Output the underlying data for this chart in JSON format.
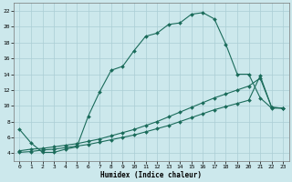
{
  "xlabel": "Humidex (Indice chaleur)",
  "bg_color": "#cce8ec",
  "line_color": "#1a6b5a",
  "grid_color": "#aacdd4",
  "xlim": [
    -0.5,
    23.5
  ],
  "ylim": [
    3.0,
    23.0
  ],
  "xticks": [
    0,
    1,
    2,
    3,
    4,
    5,
    6,
    7,
    8,
    9,
    10,
    11,
    12,
    13,
    14,
    15,
    16,
    17,
    18,
    19,
    20,
    21,
    22,
    23
  ],
  "yticks": [
    4,
    6,
    8,
    10,
    12,
    14,
    16,
    18,
    20,
    22
  ],
  "curve1_x": [
    0,
    1,
    2,
    3,
    4,
    5,
    6,
    7,
    8,
    9,
    10,
    11,
    12,
    13,
    14,
    15,
    16,
    17,
    18,
    19,
    20,
    21,
    22,
    23
  ],
  "curve1_y": [
    7.0,
    5.3,
    4.1,
    4.1,
    4.5,
    4.8,
    8.7,
    11.8,
    14.5,
    15.0,
    17.0,
    18.8,
    19.2,
    20.3,
    20.5,
    21.6,
    21.8,
    21.0,
    17.8,
    14.0,
    14.0,
    11.0,
    9.7,
    9.7
  ],
  "curve2_x": [
    0,
    1,
    2,
    3,
    4,
    5,
    6,
    7,
    8,
    9,
    10,
    11,
    12,
    13,
    14,
    15,
    16,
    17,
    18,
    19,
    20,
    21,
    22,
    23
  ],
  "curve2_y": [
    4.3,
    4.5,
    4.6,
    4.8,
    5.0,
    5.2,
    5.5,
    5.8,
    6.2,
    6.6,
    7.0,
    7.5,
    8.0,
    8.6,
    9.2,
    9.8,
    10.4,
    11.0,
    11.5,
    12.0,
    12.5,
    13.5,
    9.8,
    9.7
  ],
  "curve3_x": [
    0,
    1,
    2,
    3,
    4,
    5,
    6,
    7,
    8,
    9,
    10,
    11,
    12,
    13,
    14,
    15,
    16,
    17,
    18,
    19,
    20,
    21,
    22,
    23
  ],
  "curve3_y": [
    4.1,
    4.2,
    4.4,
    4.5,
    4.7,
    4.9,
    5.1,
    5.4,
    5.7,
    6.0,
    6.3,
    6.7,
    7.1,
    7.5,
    8.0,
    8.5,
    9.0,
    9.5,
    9.9,
    10.3,
    10.7,
    13.8,
    9.8,
    9.7
  ]
}
